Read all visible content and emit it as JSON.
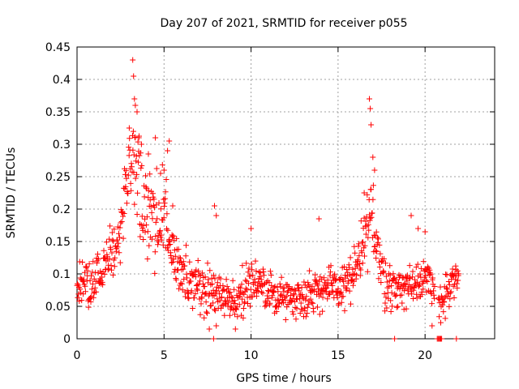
{
  "chart_data": {
    "type": "scatter",
    "title": "Day 207 of 2021, SRMTID for receiver p055",
    "xlabel": "GPS time / hours",
    "ylabel": "SRMTID / TECUs",
    "xlim": [
      0,
      24
    ],
    "ylim": [
      0,
      0.45
    ],
    "x_ticks": [
      0,
      5,
      10,
      15,
      20
    ],
    "y_ticks": [
      0,
      0.05,
      0.1,
      0.15,
      0.2,
      0.25,
      0.3,
      0.35,
      0.4,
      0.45
    ],
    "x_tick_labels": [
      "0",
      "5",
      "10",
      "15",
      "20"
    ],
    "y_tick_labels": [
      "0",
      "0.05",
      "0.1",
      "0.15",
      "0.2",
      "0.25",
      "0.3",
      "0.35",
      "0.4",
      "0.45"
    ],
    "grid": true,
    "marker": "+",
    "series": [
      {
        "name": "SRMTID",
        "color": "#ff0000",
        "envelope": [
          [
            0.0,
            0.09,
            0.03
          ],
          [
            0.4,
            0.085,
            0.03
          ],
          [
            0.8,
            0.08,
            0.03
          ],
          [
            1.2,
            0.1,
            0.035
          ],
          [
            1.6,
            0.12,
            0.035
          ],
          [
            2.0,
            0.13,
            0.04
          ],
          [
            2.4,
            0.15,
            0.045
          ],
          [
            2.8,
            0.21,
            0.05
          ],
          [
            3.1,
            0.28,
            0.07
          ],
          [
            3.4,
            0.25,
            0.07
          ],
          [
            3.8,
            0.2,
            0.06
          ],
          [
            4.2,
            0.2,
            0.06
          ],
          [
            4.6,
            0.18,
            0.06
          ],
          [
            5.0,
            0.2,
            0.06
          ],
          [
            5.4,
            0.13,
            0.05
          ],
          [
            6.0,
            0.1,
            0.04
          ],
          [
            7.0,
            0.08,
            0.03
          ],
          [
            8.0,
            0.075,
            0.03
          ],
          [
            9.0,
            0.055,
            0.025
          ],
          [
            10.0,
            0.09,
            0.035
          ],
          [
            11.0,
            0.07,
            0.025
          ],
          [
            12.0,
            0.065,
            0.025
          ],
          [
            13.0,
            0.065,
            0.025
          ],
          [
            14.0,
            0.08,
            0.03
          ],
          [
            15.0,
            0.075,
            0.03
          ],
          [
            16.0,
            0.1,
            0.04
          ],
          [
            16.6,
            0.15,
            0.05
          ],
          [
            17.0,
            0.2,
            0.07
          ],
          [
            17.5,
            0.1,
            0.04
          ],
          [
            18.0,
            0.08,
            0.03
          ],
          [
            19.0,
            0.08,
            0.03
          ],
          [
            20.0,
            0.1,
            0.03
          ],
          [
            20.4,
            0.07,
            0.03
          ],
          [
            21.0,
            0.06,
            0.025
          ],
          [
            21.8,
            0.09,
            0.03
          ]
        ],
        "peaks": [
          [
            3.2,
            0.43
          ],
          [
            3.25,
            0.405
          ],
          [
            3.3,
            0.37
          ],
          [
            3.35,
            0.36
          ],
          [
            3.45,
            0.35
          ],
          [
            3.0,
            0.325
          ],
          [
            3.55,
            0.31
          ],
          [
            3.7,
            0.3
          ],
          [
            4.1,
            0.285
          ],
          [
            4.5,
            0.31
          ],
          [
            5.3,
            0.305
          ],
          [
            5.2,
            0.29
          ],
          [
            5.0,
            0.26
          ],
          [
            4.8,
            0.255
          ],
          [
            16.8,
            0.37
          ],
          [
            16.85,
            0.355
          ],
          [
            16.9,
            0.33
          ],
          [
            17.0,
            0.28
          ],
          [
            17.1,
            0.26
          ],
          [
            16.5,
            0.225
          ],
          [
            7.9,
            0.205
          ],
          [
            8.0,
            0.19
          ],
          [
            13.9,
            0.185
          ],
          [
            19.2,
            0.19
          ],
          [
            19.6,
            0.17
          ],
          [
            20.0,
            0.165
          ],
          [
            5.5,
            0.205
          ],
          [
            10.0,
            0.17
          ],
          [
            8.0,
            0.02
          ],
          [
            7.6,
            0.015
          ],
          [
            9.1,
            0.015
          ],
          [
            20.4,
            0.02
          ]
        ],
        "zero_values": [
          7.85,
          18.25,
          20.7,
          20.75,
          20.8,
          20.85,
          20.9,
          20.95,
          21.8
        ]
      }
    ]
  }
}
